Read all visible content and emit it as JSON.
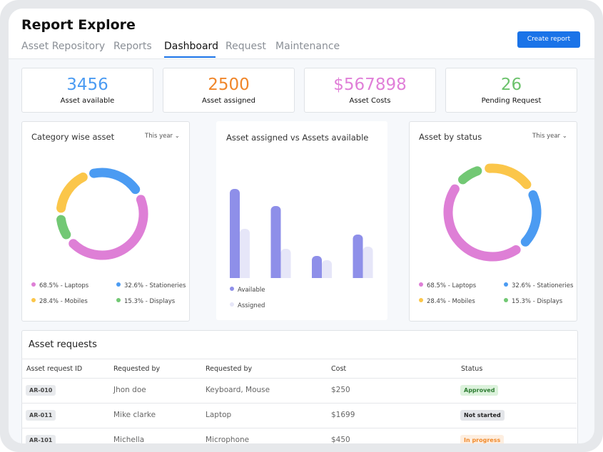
{
  "header": {
    "title": "Report Explore",
    "tabs": [
      "Asset Repository",
      "Reports",
      "Dashboard",
      "Request",
      "Maintenance"
    ],
    "button": "Create report"
  },
  "stats": [
    {
      "value": "3456",
      "label": "Asset available",
      "color": "#4b9bf2"
    },
    {
      "value": "2500",
      "label": "Asset assigned",
      "color": "#f0862a"
    },
    {
      "value": "$567898",
      "label": "Asset Costs",
      "color": "#e07fd8"
    },
    {
      "value": "26",
      "label": "Pending Request",
      "color": "#6cc26c"
    }
  ],
  "category_chart": {
    "type": "donut",
    "title": "Category wise asset",
    "filter": "This year",
    "legend": [
      {
        "label": "68.5% - Laptops",
        "value": 68.5,
        "color": "#de7fd6"
      },
      {
        "label": "32.6% - Stationeries",
        "value": 32.6,
        "color": "#4b9bf2"
      },
      {
        "label": "28.4% - Mobiles",
        "value": 28.4,
        "color": "#fbc64a"
      },
      {
        "label": "15.3% - Displays",
        "value": 15.3,
        "color": "#72c874"
      }
    ]
  },
  "bar_chart": {
    "type": "bar",
    "title": "Asset assigned vs Assets available",
    "categories": [
      null,
      null,
      null,
      null
    ],
    "series": [
      {
        "name": "Available",
        "color": "#8e8fe9",
        "values": [
          125,
          101,
          31,
          61
        ]
      },
      {
        "name": "Assigned",
        "color": "#e6e6f8",
        "values": [
          69,
          41,
          25,
          44
        ]
      }
    ]
  },
  "status_chart": {
    "type": "donut",
    "title": "Asset by status",
    "filter": "This year",
    "legend": [
      {
        "label": "68.5% - Laptops",
        "value": 68.5,
        "color": "#de7fd6"
      },
      {
        "label": "32.6% - Stationeries",
        "value": 32.6,
        "color": "#4b9bf2"
      },
      {
        "label": "28.4% - Mobiles",
        "value": 28.4,
        "color": "#fbc64a"
      },
      {
        "label": "15.3% - Displays",
        "value": 15.3,
        "color": "#72c874"
      }
    ]
  },
  "table": {
    "title": "Asset requests",
    "columns": [
      "Asset request ID",
      "Requested by",
      "Requested by",
      "Cost",
      "Status"
    ],
    "rows": [
      [
        "AR-010",
        "Jhon doe",
        "Keyboard, Mouse",
        "$250",
        "Approved"
      ],
      [
        "AR-011",
        "Mike clarke",
        "Laptop",
        "$1699",
        "Not started"
      ],
      [
        "AR-101",
        "Michella",
        "Microphone",
        "$450",
        "In progress"
      ]
    ]
  }
}
